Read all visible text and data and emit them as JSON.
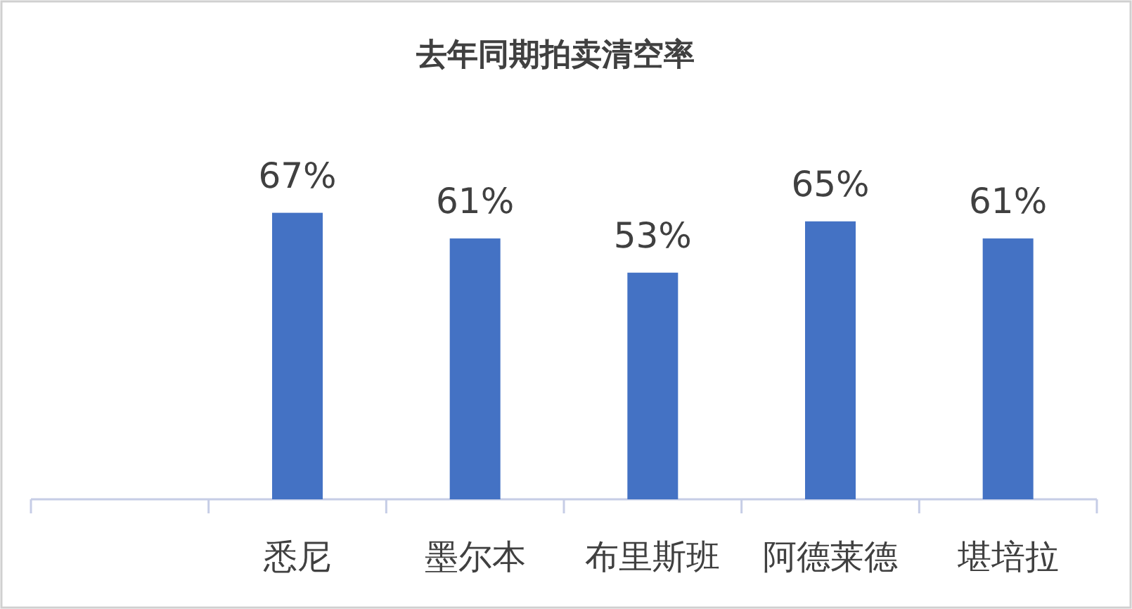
{
  "chart_data": {
    "type": "bar",
    "title": "去年同期拍卖清空率",
    "categories": [
      null,
      "悉尼",
      "墨尔本",
      "布里斯班",
      "阿德莱德",
      "堪培拉"
    ],
    "values": [
      null,
      67,
      61,
      53,
      65,
      61
    ],
    "value_labels": [
      null,
      "67%",
      "61%",
      "53%",
      "65%",
      "61%"
    ],
    "color": "#4472c4"
  }
}
